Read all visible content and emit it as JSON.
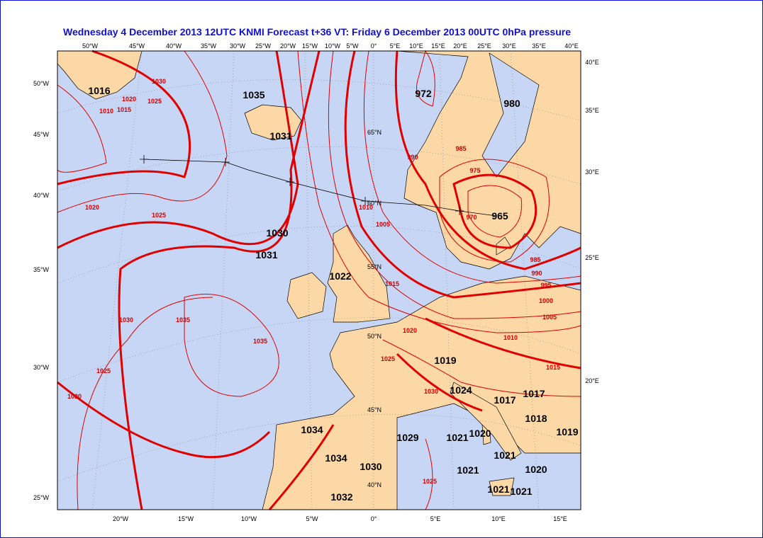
{
  "header": {
    "title": "Wednesday 4 December 2013 12UTC KNMI  Forecast t+36 VT: Friday 6 December 2013 00UTC  0hPa pressure"
  },
  "axes": {
    "top": [
      "50°W",
      "45°W",
      "40°W",
      "35°W",
      "30°W",
      "25°W",
      "20°W",
      "15°W",
      "10°W",
      "5°W",
      "0°",
      "5°E",
      "10°E",
      "15°E",
      "20°E",
      "25°E",
      "30°E",
      "35°E",
      "40°E"
    ],
    "left": [
      "50°W",
      "45°W",
      "40°W",
      "35°W",
      "30°W",
      "25°W"
    ],
    "right": [
      "40°E",
      "35°E",
      "30°E",
      "25°E",
      "20°E"
    ],
    "bottom": [
      "20°W",
      "15°W",
      "10°W",
      "5°W",
      "0°",
      "5°E",
      "10°E",
      "15°E"
    ]
  },
  "pressure_centers": [
    "1016",
    "1035",
    "1031",
    "972",
    "980",
    "1030",
    "1031",
    "1022",
    "965",
    "1019",
    "1024",
    "1017",
    "1017",
    "1018",
    "1019",
    "1034",
    "1029",
    "1021",
    "1020",
    "1021",
    "1034",
    "1030",
    "1021",
    "1020",
    "1021",
    "1021",
    "1032"
  ],
  "isobar_labels": [
    "1030",
    "1025",
    "1020",
    "1015",
    "1010",
    "1020",
    "1025",
    "1035",
    "1035",
    "1030",
    "1025",
    "1020",
    "1025",
    "1020",
    "1015",
    "1010",
    "1005",
    "990",
    "985",
    "975",
    "970",
    "985",
    "990",
    "995",
    "1000",
    "1005",
    "1010",
    "1015",
    "1030",
    "1025"
  ],
  "grid_labels": [
    "65°N",
    "60°N",
    "55°N",
    "50°N",
    "45°N",
    "40°N"
  ]
}
